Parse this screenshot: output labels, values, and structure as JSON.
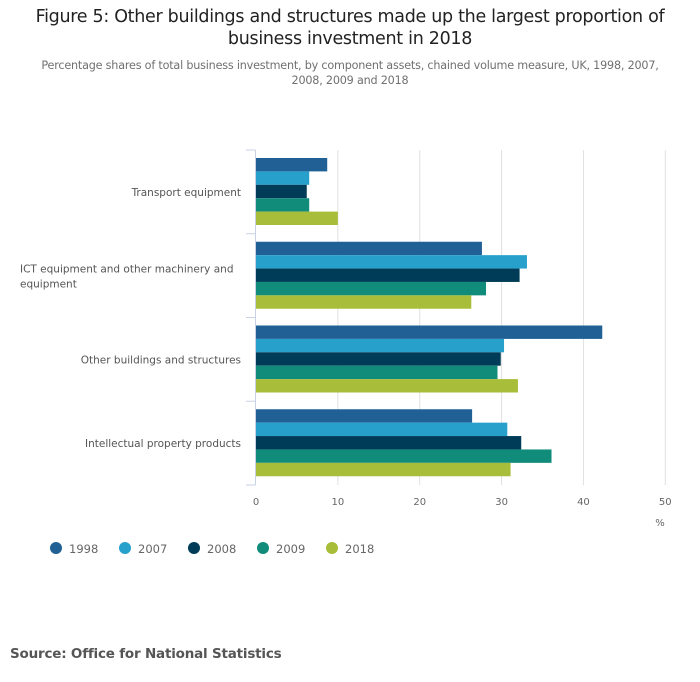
{
  "chart_data": {
    "type": "bar",
    "orientation": "horizontal",
    "title": "Figure 5: Other buildings and structures made up the largest proportion of business investment in 2018",
    "title_lines": [
      "Figure 5: Other buildings and structures made up the largest proportion of",
      "business investment in 2018"
    ],
    "subtitle": "Percentage shares of total business investment, by component assets, chained volume measure, UK, 1998, 2007, 2008, 2009 and 2018",
    "subtitle_lines": [
      "Percentage shares of total business investment, by component assets, chained volume measure, UK, 1998, 2007,",
      "2008, 2009 and 2018"
    ],
    "categories": [
      "Transport equipment",
      "ICT equipment and other machinery and equipment",
      "Other buildings and structures",
      "Intellectual property products"
    ],
    "category_label_lines": [
      [
        "Transport equipment"
      ],
      [
        "ICT equipment and other machinery and",
        "equipment"
      ],
      [
        "Other buildings and structures"
      ],
      [
        "Intellectual property products"
      ]
    ],
    "series": [
      {
        "name": "1998",
        "color": "#206095",
        "values": [
          8.7,
          27.6,
          42.3,
          26.4
        ]
      },
      {
        "name": "2007",
        "color": "#27a0cc",
        "values": [
          6.5,
          33.1,
          30.3,
          30.7
        ]
      },
      {
        "name": "2008",
        "color": "#003c57",
        "values": [
          6.2,
          32.2,
          29.9,
          32.4
        ]
      },
      {
        "name": "2009",
        "color": "#118c7b",
        "values": [
          6.5,
          28.1,
          29.5,
          36.1
        ]
      },
      {
        "name": "2018",
        "color": "#a8bd3a",
        "values": [
          10.0,
          26.3,
          32.0,
          31.1
        ]
      }
    ],
    "xlabel": "%",
    "ylabel": "",
    "xlim": [
      0,
      50
    ],
    "xticks": [
      "0",
      "10",
      "20",
      "30",
      "40",
      "50"
    ],
    "grid": true,
    "legend_position": "bottom-left"
  },
  "source": "Source: Office for National Statistics"
}
